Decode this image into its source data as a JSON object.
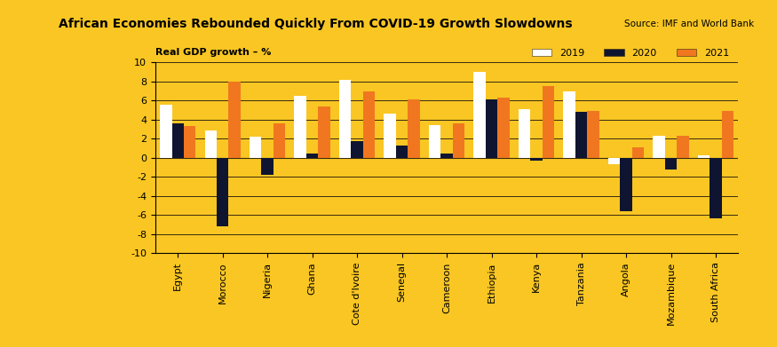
{
  "chart_data": {
    "type": "bar",
    "title": "African Economies Rebounded Quickly From COVID-19 Growth Slowdowns",
    "subtitle": "Source: IMF and World Bank",
    "y_label": "Real GDP growth – %",
    "categories": [
      "Egypt",
      "Morocco",
      "Nigeria",
      "Ghana",
      "Cote d'Ivoire",
      "Senegal",
      "Cameroon",
      "Ethiopia",
      "Kenya",
      "Tanzania",
      "Angola",
      "Mozambique",
      "South Africa"
    ],
    "series": [
      {
        "name": "2019",
        "color": "#ffffff",
        "values": [
          5.6,
          2.9,
          2.2,
          6.5,
          8.2,
          4.6,
          3.4,
          9.0,
          5.1,
          7.0,
          -0.7,
          2.3,
          0.3
        ]
      },
      {
        "name": "2020",
        "color": "#0f1530",
        "values": [
          3.6,
          -7.2,
          -1.8,
          0.5,
          1.8,
          1.3,
          0.5,
          6.1,
          -0.3,
          4.8,
          -5.6,
          -1.2,
          -6.3
        ]
      },
      {
        "name": "2021",
        "color": "#f0771f",
        "values": [
          3.3,
          8.0,
          3.6,
          5.4,
          7.0,
          6.1,
          3.6,
          6.3,
          7.5,
          4.9,
          1.1,
          2.3,
          4.9
        ]
      }
    ],
    "ylim": [
      -10,
      10
    ],
    "yticks": [
      -10,
      -8,
      -6,
      -4,
      -2,
      0,
      2,
      4,
      6,
      8,
      10
    ],
    "grid": true,
    "legend": "upper right"
  }
}
